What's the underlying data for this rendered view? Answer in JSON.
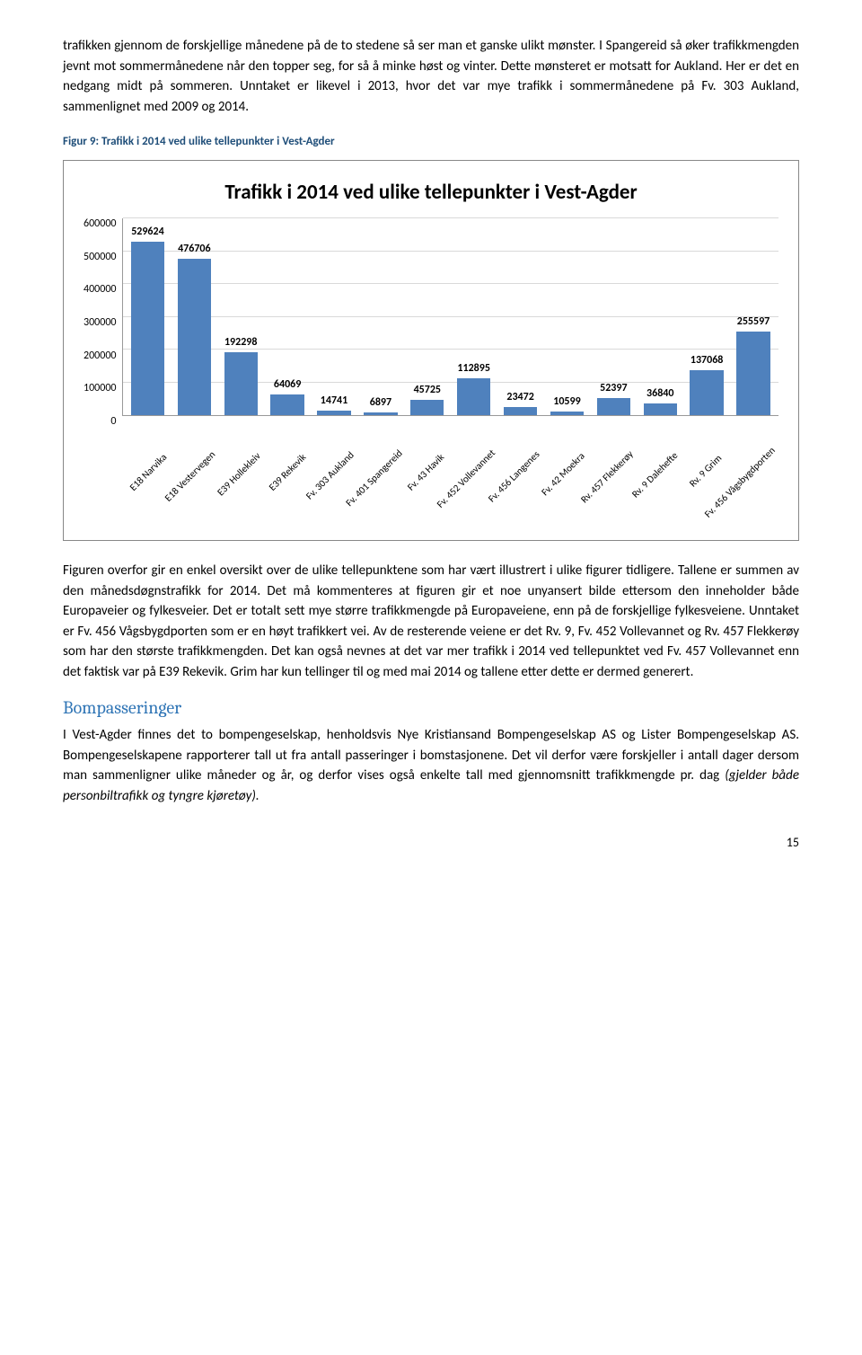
{
  "para1": "trafikken gjennom de forskjellige månedene på de to stedene så ser man et ganske ulikt mønster. I Spangereid så øker trafikkmengden jevnt mot sommermånedene når den topper seg, for så å minke høst og vinter. Dette mønsteret er motsatt for Aukland. Her er det en nedgang midt på sommeren. Unntaket er likevel i 2013, hvor det var mye trafikk i sommermånedene på Fv. 303 Aukland, sammenlignet med 2009 og 2014.",
  "caption": "Figur 9: Trafikk i 2014 ved ulike tellepunkter i Vest-Agder",
  "chart": {
    "title": "Trafikk i 2014 ved ulike tellepunkter i Vest-Agder",
    "ymax": 600000,
    "ystep": 100000,
    "bar_color": "#4f81bd",
    "yticks": [
      "0",
      "100000",
      "200000",
      "300000",
      "400000",
      "500000",
      "600000"
    ],
    "bars": [
      {
        "label": "E18 Narvika",
        "value": 529624
      },
      {
        "label": "E18 Vestervegen",
        "value": 476706
      },
      {
        "label": "E39 Hollekleiv",
        "value": 192298
      },
      {
        "label": "E39 Rekevik",
        "value": 64069
      },
      {
        "label": "Fv. 303 Aukland",
        "value": 14741
      },
      {
        "label": "Fv. 401 Spangereid",
        "value": 6897
      },
      {
        "label": "Fv. 43 Havik",
        "value": 45725
      },
      {
        "label": "Fv. 452 Vollevannet",
        "value": 112895
      },
      {
        "label": "Fv. 456 Langenes",
        "value": 23472
      },
      {
        "label": "Fv. 42 Moekra",
        "value": 10599
      },
      {
        "label": "Rv. 457 Flekkerøy",
        "value": 52397
      },
      {
        "label": "Rv. 9 Dalehefte",
        "value": 36840
      },
      {
        "label": "Rv. 9 Grim",
        "value": 137068
      },
      {
        "label": "Fv. 456 Vågsbygdporten",
        "value": 255597
      }
    ]
  },
  "para2": "Figuren overfor gir en enkel oversikt over de ulike tellepunktene som har vært illustrert i ulike figurer tidligere. Tallene er summen av den månedsdøgnstrafikk for 2014. Det må kommenteres at figuren gir et noe unyansert bilde ettersom den inneholder både Europaveier og fylkesveier. Det er totalt sett mye større trafikkmengde på Europaveiene, enn på de forskjellige fylkesveiene. Unntaket er Fv. 456 Vågsbygdporten som er en høyt trafikkert vei. Av de resterende veiene er det Rv. 9, Fv. 452 Vollevannet og Rv. 457 Flekkerøy som har den største trafikkmengden. Det kan også nevnes at det var mer trafikk i 2014 ved tellepunktet ved Fv. 457 Vollevannet enn det faktisk var på E39 Rekevik. Grim har kun tellinger til og med mai 2014 og tallene etter dette er dermed generert.",
  "h2": "Bompasseringer",
  "para3_a": "I Vest-Agder finnes det to bompengeselskap, henholdsvis Nye Kristiansand Bompengeselskap AS og Lister Bompengeselskap AS. Bompengeselskapene rapporterer tall ut fra antall passeringer i bomstasjonene. Det vil derfor være forskjeller i antall dager dersom man sammenligner ulike måneder og år, og derfor vises også enkelte tall med gjennomsnitt trafikkmengde pr. dag ",
  "para3_b": "(gjelder både personbiltrafikk og tyngre kjøretøy).",
  "page_num": "15"
}
